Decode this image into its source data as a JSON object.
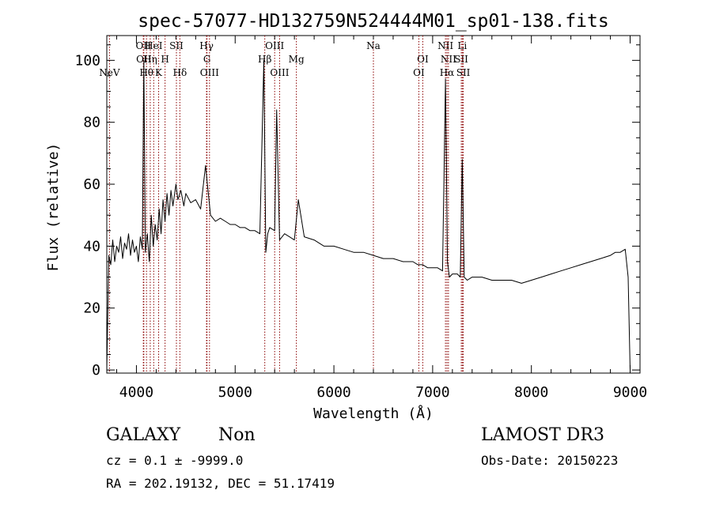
{
  "chart_data": {
    "type": "line",
    "title": "spec-57077-HD132759N524444M01_sp01-138.fits",
    "xlabel": "Wavelength (Å)",
    "ylabel": "Flux (relative)",
    "xlim": [
      3700,
      9100
    ],
    "ylim": [
      -1,
      108
    ],
    "x_ticks": [
      4000,
      5000,
      6000,
      7000,
      8000,
      9000
    ],
    "y_ticks": [
      0,
      20,
      40,
      60,
      80,
      100
    ],
    "grid": false,
    "legend": "none",
    "line_color": "#000000",
    "marker_color": "#8b0000",
    "series": [
      {
        "x": [
          3700,
          3720,
          3740,
          3760,
          3780,
          3800,
          3820,
          3840,
          3860,
          3880,
          3900,
          3920,
          3940,
          3960,
          3980,
          4000,
          4020,
          4040,
          4060,
          4075,
          4090,
          4110,
          4130,
          4150,
          4170,
          4190,
          4210,
          4230,
          4250,
          4270,
          4290,
          4310,
          4330,
          4350,
          4370,
          4400,
          4420,
          4450,
          4480,
          4500,
          4550,
          4600,
          4650,
          4700,
          4750,
          4800,
          4850,
          4900,
          4950,
          5000,
          5050,
          5100,
          5150,
          5200,
          5250,
          5290,
          5310,
          5330,
          5350,
          5400,
          5420,
          5450,
          5500,
          5550,
          5600,
          5640,
          5700,
          5800,
          5900,
          6000,
          6100,
          6200,
          6300,
          6400,
          6500,
          6600,
          6700,
          6800,
          6850,
          6900,
          6950,
          7000,
          7050,
          7100,
          7130,
          7150,
          7170,
          7200,
          7250,
          7280,
          7300,
          7320,
          7350,
          7400,
          7500,
          7600,
          7700,
          7800,
          7900,
          8000,
          8100,
          8200,
          8300,
          8400,
          8500,
          8600,
          8700,
          8800,
          8850,
          8900,
          8950,
          8980,
          9000
        ],
        "y": [
          0,
          37,
          34,
          42,
          35,
          40,
          38,
          43,
          36,
          41,
          39,
          44,
          37,
          42,
          38,
          40,
          35,
          43,
          39,
          100,
          38,
          44,
          35,
          50,
          40,
          47,
          42,
          52,
          44,
          55,
          48,
          57,
          50,
          58,
          53,
          60,
          55,
          58,
          53,
          57,
          54,
          55,
          52,
          66,
          50,
          48,
          49,
          48,
          47,
          47,
          46,
          46,
          45,
          45,
          44,
          100,
          38,
          44,
          46,
          45,
          84,
          42,
          44,
          43,
          42,
          55,
          43,
          42,
          40,
          40,
          39,
          38,
          38,
          37,
          36,
          36,
          35,
          35,
          34,
          34,
          33,
          33,
          33,
          32,
          94,
          35,
          30,
          31,
          31,
          30,
          68,
          30,
          29,
          30,
          30,
          29,
          29,
          29,
          28,
          29,
          30,
          31,
          32,
          33,
          34,
          35,
          36,
          37,
          38,
          38,
          39,
          30,
          0
        ]
      }
    ],
    "line_markers": [
      {
        "label": "NeV",
        "x": 3727,
        "row": 3
      },
      {
        "label": "OII",
        "x": 4070,
        "row": 1
      },
      {
        "label": "OII",
        "x": 4075,
        "row": 2
      },
      {
        "label": "Hθ",
        "x": 4102,
        "row": 3
      },
      {
        "label": "Hη",
        "x": 4140,
        "row": 2
      },
      {
        "label": "HeI",
        "x": 4175,
        "row": 1
      },
      {
        "label": "K",
        "x": 4225,
        "row": 3
      },
      {
        "label": "H",
        "x": 4290,
        "row": 2
      },
      {
        "label": "SII",
        "x": 4405,
        "row": 1
      },
      {
        "label": "Hδ",
        "x": 4440,
        "row": 3
      },
      {
        "label": "Hγ",
        "x": 4710,
        "row": 1
      },
      {
        "label": "G",
        "x": 4715,
        "row": 2
      },
      {
        "label": "OIII",
        "x": 4740,
        "row": 3
      },
      {
        "label": "Hβ",
        "x": 5300,
        "row": 2
      },
      {
        "label": "OIII",
        "x": 5400,
        "row": 1
      },
      {
        "label": "OIII",
        "x": 5450,
        "row": 3
      },
      {
        "label": "Mg",
        "x": 5620,
        "row": 2
      },
      {
        "label": "Na",
        "x": 6400,
        "row": 1
      },
      {
        "label": "OI",
        "x": 6900,
        "row": 2
      },
      {
        "label": "OI",
        "x": 6860,
        "row": 3
      },
      {
        "label": "NII",
        "x": 7130,
        "row": 1
      },
      {
        "label": "NII",
        "x": 7160,
        "row": 2
      },
      {
        "label": "Hα",
        "x": 7145,
        "row": 3
      },
      {
        "label": "SII",
        "x": 7290,
        "row": 2
      },
      {
        "label": "SII",
        "x": 7310,
        "row": 3
      },
      {
        "label": "Li",
        "x": 7300,
        "row": 1
      }
    ]
  },
  "info": {
    "class": "GALAXY",
    "subclass": "Non",
    "survey": "LAMOST DR3",
    "cz": "cz = 0.1 ± -9999.0",
    "obs_date": "Obs-Date: 20150223",
    "coords": "RA = 202.19132, DEC =  51.17419"
  }
}
